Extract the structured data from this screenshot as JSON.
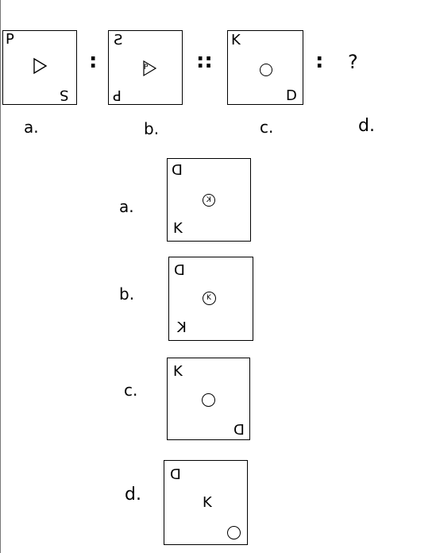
{
  "question": {
    "box_a": {
      "corner": "P",
      "bottom": "S"
    },
    "box_b": {
      "top": "S",
      "bottom": "P",
      "inner": "P"
    },
    "box_c": {
      "top": "K",
      "bottom": "D"
    },
    "separator": ":",
    "double_separator": "::",
    "unknown": "?",
    "labels": [
      "a.",
      "b.",
      "c.",
      "d."
    ]
  },
  "options": [
    {
      "label": "a.",
      "top": "D",
      "bottom": "K",
      "inner": "K"
    },
    {
      "label": "b.",
      "top": "D",
      "bottom": "K",
      "inner": "K"
    },
    {
      "label": "c.",
      "top": "K",
      "bottom": "D"
    },
    {
      "label": "d.",
      "top": "D",
      "middle": "K"
    }
  ]
}
